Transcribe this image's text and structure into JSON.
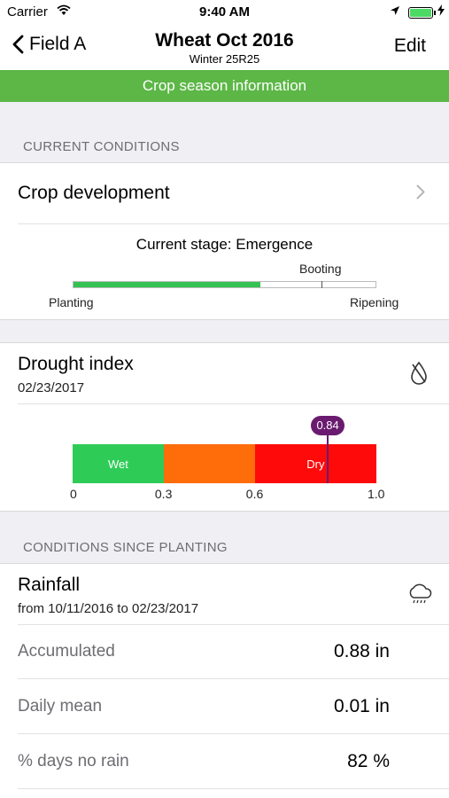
{
  "status_bar": {
    "carrier": "Carrier",
    "time": "9:40 AM"
  },
  "nav": {
    "back_label": "Field A",
    "title": "Wheat Oct 2016",
    "subtitle": "Winter 25R25",
    "edit_label": "Edit"
  },
  "season_bar": {
    "label": "Crop season information",
    "color": "#5cb746"
  },
  "current_conditions": {
    "header": "CURRENT CONDITIONS",
    "crop_development": {
      "label": "Crop development",
      "current_stage": "Current stage: Emergence",
      "progress_fraction": 0.62,
      "booting_fraction": 0.82,
      "label_start": "Planting",
      "label_mid": "Booting",
      "label_end": "Ripening"
    },
    "drought": {
      "title": "Drought index",
      "date": "02/23/2017",
      "icon": "drop-slash-icon",
      "value": 0.84,
      "value_label": "0.84",
      "segments": [
        {
          "label": "Wet",
          "from": 0,
          "to": 0.3,
          "color": "#2ecc57"
        },
        {
          "label": "",
          "from": 0.3,
          "to": 0.6,
          "color": "#ff6d0a"
        },
        {
          "label": "Dry",
          "from": 0.6,
          "to": 1.0,
          "color": "#ff0a0a"
        }
      ],
      "axis": [
        "0",
        "0.3",
        "0.6",
        "1.0"
      ],
      "marker_color": "#6a1b6f"
    }
  },
  "since_planting": {
    "header": "CONDITIONS SINCE PLANTING",
    "rainfall": {
      "title": "Rainfall",
      "period": "from 10/11/2016 to 02/23/2017",
      "icon": "rain-cloud-icon",
      "rows": [
        {
          "label": "Accumulated",
          "value": "0.88 in"
        },
        {
          "label": "Daily mean",
          "value": "0.01 in"
        },
        {
          "label": "% days no rain",
          "value": "82 %"
        }
      ]
    }
  }
}
